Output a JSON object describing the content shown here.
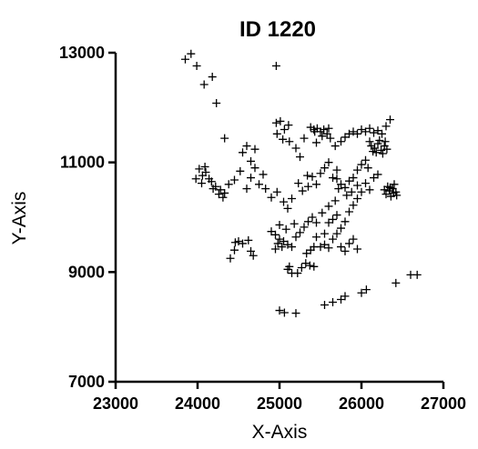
{
  "chart_data": {
    "type": "scatter",
    "title": "ID 1220",
    "xlabel": "X-Axis",
    "ylabel": "Y-Axis",
    "xlim": [
      23000,
      27000
    ],
    "ylim": [
      7000,
      13000
    ],
    "xticks": [
      23000,
      24000,
      25000,
      26000,
      27000
    ],
    "yticks": [
      7000,
      9000,
      11000,
      13000
    ],
    "xtick_labels": [
      "23000",
      "24000",
      "25000",
      "26000",
      "27000"
    ],
    "ytick_labels": [
      "7000",
      "9000",
      "11000",
      "13000"
    ],
    "grid": false,
    "legend": "none",
    "marker": "plus",
    "color": "#000000",
    "series": [
      {
        "points": [
          [
            23850,
            12880
          ],
          [
            23920,
            12980
          ],
          [
            23990,
            12760
          ],
          [
            24080,
            12420
          ],
          [
            24180,
            12560
          ],
          [
            24230,
            12080
          ],
          [
            24960,
            12760
          ],
          [
            24020,
            10880
          ],
          [
            24060,
            10760
          ],
          [
            24100,
            10820
          ],
          [
            24140,
            10700
          ],
          [
            24090,
            10920
          ],
          [
            24170,
            10650
          ],
          [
            24220,
            10560
          ],
          [
            24280,
            10500
          ],
          [
            24330,
            10440
          ],
          [
            24380,
            10600
          ],
          [
            24450,
            10680
          ],
          [
            24520,
            10840
          ],
          [
            24600,
            10520
          ],
          [
            24650,
            10720
          ],
          [
            24700,
            10900
          ],
          [
            24310,
            10360
          ],
          [
            24260,
            10420
          ],
          [
            24190,
            10520
          ],
          [
            23980,
            10700
          ],
          [
            24050,
            10620
          ],
          [
            24550,
            11180
          ],
          [
            24600,
            11300
          ],
          [
            24650,
            11020
          ],
          [
            24700,
            11240
          ],
          [
            24750,
            10600
          ],
          [
            24800,
            10780
          ],
          [
            24960,
            11720
          ],
          [
            25010,
            11750
          ],
          [
            25060,
            11600
          ],
          [
            25110,
            11680
          ],
          [
            24970,
            11520
          ],
          [
            25040,
            11420
          ],
          [
            25120,
            11380
          ],
          [
            25200,
            11260
          ],
          [
            25250,
            11100
          ],
          [
            25300,
            11440
          ],
          [
            24830,
            10520
          ],
          [
            24900,
            10360
          ],
          [
            24970,
            10460
          ],
          [
            25050,
            10280
          ],
          [
            25100,
            10160
          ],
          [
            25150,
            10340
          ],
          [
            25230,
            10620
          ],
          [
            25280,
            10480
          ],
          [
            25340,
            10760
          ],
          [
            24900,
            9740
          ],
          [
            24950,
            9680
          ],
          [
            25000,
            9600
          ],
          [
            25050,
            9560
          ],
          [
            25100,
            9500
          ],
          [
            25150,
            9460
          ],
          [
            25200,
            9640
          ],
          [
            25250,
            9720
          ],
          [
            25300,
            9820
          ],
          [
            25350,
            9920
          ],
          [
            25400,
            10000
          ],
          [
            25450,
            9900
          ],
          [
            25000,
            9860
          ],
          [
            25080,
            9780
          ],
          [
            25180,
            9880
          ],
          [
            24950,
            9420
          ],
          [
            25030,
            9460
          ],
          [
            24980,
            9520
          ],
          [
            25100,
            9050
          ],
          [
            25150,
            8980
          ],
          [
            25220,
            8980
          ],
          [
            25270,
            9080
          ],
          [
            25320,
            9160
          ],
          [
            25370,
            9120
          ],
          [
            25420,
            9100
          ],
          [
            25120,
            9100
          ],
          [
            24400,
            9250
          ],
          [
            24450,
            9400
          ],
          [
            24500,
            9560
          ],
          [
            24550,
            9520
          ],
          [
            24620,
            9580
          ],
          [
            24650,
            9380
          ],
          [
            24680,
            9300
          ],
          [
            24460,
            9540
          ],
          [
            25000,
            8300
          ],
          [
            25060,
            8260
          ],
          [
            25200,
            8250
          ],
          [
            25550,
            8400
          ],
          [
            25650,
            8450
          ],
          [
            25750,
            8500
          ],
          [
            25800,
            8560
          ],
          [
            26000,
            8620
          ],
          [
            26060,
            8680
          ],
          [
            26420,
            8800
          ],
          [
            26600,
            8950
          ],
          [
            26680,
            8950
          ],
          [
            25380,
            11640
          ],
          [
            25420,
            11600
          ],
          [
            25460,
            11620
          ],
          [
            25500,
            11560
          ],
          [
            25540,
            11600
          ],
          [
            25580,
            11520
          ],
          [
            25620,
            11440
          ],
          [
            25520,
            11480
          ],
          [
            25430,
            11560
          ],
          [
            25600,
            11620
          ],
          [
            25450,
            11360
          ],
          [
            25680,
            11300
          ],
          [
            25750,
            11380
          ],
          [
            25800,
            11460
          ],
          [
            25850,
            11520
          ],
          [
            25900,
            11560
          ],
          [
            25950,
            11520
          ],
          [
            26000,
            11600
          ],
          [
            26050,
            11560
          ],
          [
            26100,
            11620
          ],
          [
            26150,
            11540
          ],
          [
            26200,
            11580
          ],
          [
            26250,
            11520
          ],
          [
            26300,
            11660
          ],
          [
            26350,
            11780
          ],
          [
            26120,
            11300
          ],
          [
            26160,
            11260
          ],
          [
            26200,
            11340
          ],
          [
            26240,
            11220
          ],
          [
            26280,
            11300
          ],
          [
            26180,
            11180
          ],
          [
            26220,
            11400
          ],
          [
            26260,
            11160
          ],
          [
            26310,
            11240
          ],
          [
            26140,
            11200
          ],
          [
            26100,
            11380
          ],
          [
            26290,
            11380
          ],
          [
            25700,
            10700
          ],
          [
            25750,
            10600
          ],
          [
            25800,
            10540
          ],
          [
            25850,
            10660
          ],
          [
            25900,
            10720
          ],
          [
            25950,
            10580
          ],
          [
            26000,
            10460
          ],
          [
            26050,
            10620
          ],
          [
            26100,
            10500
          ],
          [
            26150,
            10720
          ],
          [
            26200,
            10780
          ],
          [
            25820,
            10400
          ],
          [
            25880,
            10460
          ],
          [
            25720,
            10520
          ],
          [
            26300,
            10420
          ],
          [
            26340,
            10480
          ],
          [
            26380,
            10520
          ],
          [
            26420,
            10460
          ],
          [
            26360,
            10380
          ],
          [
            26320,
            10560
          ],
          [
            26400,
            10600
          ],
          [
            26430,
            10400
          ],
          [
            26350,
            10540
          ],
          [
            26390,
            10440
          ],
          [
            26280,
            10500
          ],
          [
            25500,
            10800
          ],
          [
            25550,
            10900
          ],
          [
            25600,
            11000
          ],
          [
            25650,
            10720
          ],
          [
            25450,
            10600
          ],
          [
            25350,
            10560
          ],
          [
            25400,
            10740
          ],
          [
            25950,
            10860
          ],
          [
            26000,
            10960
          ],
          [
            26050,
            11040
          ],
          [
            26080,
            10900
          ],
          [
            25700,
            10860
          ],
          [
            25500,
            9460
          ],
          [
            25550,
            9500
          ],
          [
            25600,
            9440
          ],
          [
            25650,
            9600
          ],
          [
            25700,
            9700
          ],
          [
            25750,
            9460
          ],
          [
            25800,
            9380
          ],
          [
            25850,
            9520
          ],
          [
            25900,
            9600
          ],
          [
            25950,
            9420
          ],
          [
            25450,
            9640
          ],
          [
            25550,
            9700
          ],
          [
            25600,
            9900
          ],
          [
            25650,
            9960
          ],
          [
            25700,
            10040
          ],
          [
            25750,
            9800
          ],
          [
            25800,
            9920
          ],
          [
            25850,
            10100
          ],
          [
            25900,
            10220
          ],
          [
            25950,
            10340
          ],
          [
            25600,
            10200
          ],
          [
            25680,
            10300
          ],
          [
            25520,
            10080
          ],
          [
            25380,
            9400
          ],
          [
            25420,
            9460
          ],
          [
            25330,
            9340
          ],
          [
            24330,
            11440
          ]
        ]
      }
    ]
  }
}
